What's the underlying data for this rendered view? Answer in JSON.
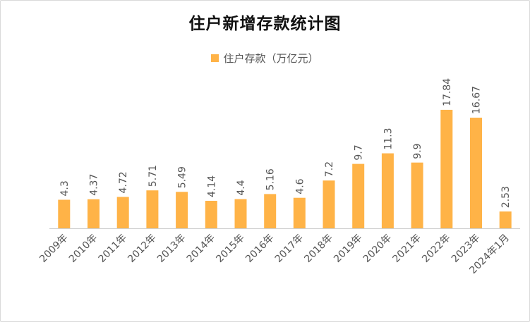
{
  "chart_data": {
    "type": "bar",
    "title": "住户新增存款统计图",
    "legend": [
      "住户存款（万亿元）"
    ],
    "legend_position": "top",
    "grid": false,
    "color": "#ffb347",
    "categories": [
      "2009年",
      "2010年",
      "2011年",
      "2012年",
      "2013年",
      "2014年",
      "2015年",
      "2016年",
      "2017年",
      "2018年",
      "2019年",
      "2020年",
      "2021年",
      "2022年",
      "2023年",
      "2024年1月"
    ],
    "series": [
      {
        "name": "住户存款（万亿元）",
        "values": [
          4.3,
          4.37,
          4.72,
          5.71,
          5.49,
          4.14,
          4.4,
          5.16,
          4.6,
          7.2,
          9.7,
          11.3,
          9.9,
          17.84,
          16.67,
          2.53
        ]
      }
    ],
    "data_labels": [
      "4.3",
      "4.37",
      "4.72",
      "5.71",
      "5.49",
      "4.14",
      "4.4",
      "5.16",
      "4.6",
      "7.2",
      "9.7",
      "11.3",
      "9.9",
      "17.84",
      "16.67",
      "2.53"
    ],
    "ylim": [
      0,
      18
    ]
  }
}
